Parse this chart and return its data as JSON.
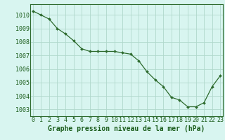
{
  "x": [
    0,
    1,
    2,
    3,
    4,
    5,
    6,
    7,
    8,
    9,
    10,
    11,
    12,
    13,
    14,
    15,
    16,
    17,
    18,
    19,
    20,
    21,
    22,
    23
  ],
  "y": [
    1010.3,
    1010.0,
    1009.7,
    1009.0,
    1008.6,
    1008.1,
    1007.5,
    1007.3,
    1007.3,
    1007.3,
    1007.3,
    1007.2,
    1007.1,
    1006.6,
    1005.8,
    1005.2,
    1004.7,
    1003.9,
    1003.7,
    1003.2,
    1003.2,
    1003.5,
    1004.7,
    1005.5
  ],
  "line_color": "#2d6a2d",
  "marker_color": "#2d6a2d",
  "bg_color": "#d8f5f0",
  "grid_color": "#b0d8cc",
  "xlabel": "Graphe pression niveau de la mer (hPa)",
  "xlabel_fontsize": 7,
  "ylabel_ticks": [
    1003,
    1004,
    1005,
    1006,
    1007,
    1008,
    1009,
    1010
  ],
  "ylim": [
    1002.5,
    1010.8
  ],
  "xlim": [
    -0.3,
    23.3
  ],
  "tick_fontsize": 6
}
